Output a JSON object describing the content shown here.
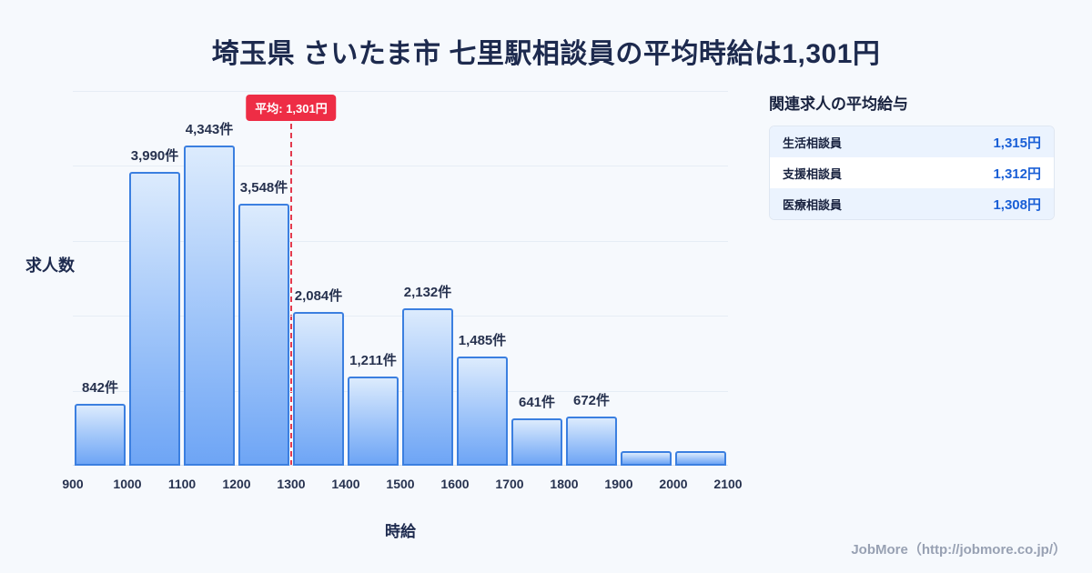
{
  "title": "埼玉県 さいたま市 七里駅相談員の平均時給は1,301円",
  "chart_data": {
    "type": "bar",
    "title": "埼玉県 さいたま市 七里駅相談員の時給分布",
    "xlabel": "時給",
    "ylabel": "求人数",
    "x_ticks": [
      "900",
      "1000",
      "1100",
      "1200",
      "1300",
      "1400",
      "1500",
      "1600",
      "1700",
      "1800",
      "1900",
      "2000",
      "2100"
    ],
    "bin_width": 100,
    "values": [
      842,
      3990,
      4343,
      3548,
      2084,
      1211,
      2132,
      1485,
      641,
      672,
      200,
      200
    ],
    "labels": [
      "842件",
      "3,990件",
      "4,343件",
      "3,548件",
      "2,084件",
      "1,211件",
      "2,132件",
      "1,485件",
      "641件",
      "672件",
      "",
      ""
    ],
    "ymax": 4343,
    "average": {
      "value": 1301,
      "label": "平均: 1,301円"
    },
    "grid": "horizontal"
  },
  "panel": {
    "title": "関連求人の平均給与",
    "rows": [
      {
        "name": "生活相談員",
        "value": "1,315円"
      },
      {
        "name": "支援相談員",
        "value": "1,312円"
      },
      {
        "name": "医療相談員",
        "value": "1,308円"
      }
    ]
  },
  "footer": {
    "credit": "JobMore（http://jobmore.co.jp/）"
  },
  "colors": {
    "background": "#f6f9fd",
    "title_text": "#1d2a4e",
    "bar_border": "#3b7fe0",
    "bar_fill_top": "#dcebfd",
    "bar_fill_bottom": "#6ea5f5",
    "average_red": "#ee2d45",
    "panel_value_blue": "#1a5fd6",
    "panel_row_alt": "#ebf3fe"
  }
}
